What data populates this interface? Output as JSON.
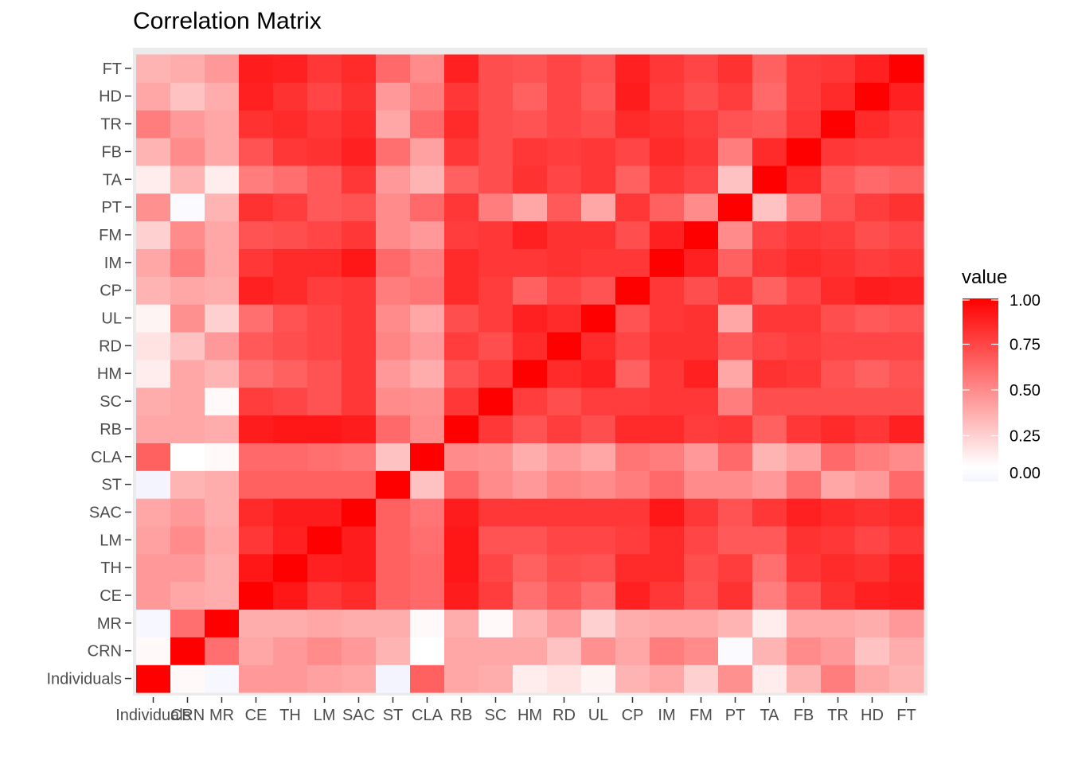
{
  "chart_data": {
    "type": "heatmap",
    "title": "Correlation Matrix",
    "xlabel": "",
    "ylabel": "",
    "variables": [
      "Individuals",
      "CRN",
      "MR",
      "CE",
      "TH",
      "LM",
      "SAC",
      "ST",
      "CLA",
      "RB",
      "SC",
      "HM",
      "RD",
      "UL",
      "CP",
      "IM",
      "FM",
      "PT",
      "TA",
      "FB",
      "TR",
      "HD",
      "FT"
    ],
    "legend": {
      "title": "value",
      "position": "right",
      "ticks": [
        "0.00",
        "0.25",
        "0.50",
        "0.75",
        "1.00"
      ],
      "low_color": "#f4f4ff",
      "mid_color": "#ffffff",
      "high_color": "#ff0000",
      "range": [
        0,
        1
      ]
    },
    "grid": true,
    "matrix": [
      [
        1.0,
        0.1,
        0.02,
        0.45,
        0.45,
        0.42,
        0.4,
        0.0,
        0.65,
        0.4,
        0.38,
        0.15,
        0.18,
        0.12,
        0.35,
        0.4,
        0.25,
        0.48,
        0.15,
        0.35,
        0.55,
        0.4,
        0.35
      ],
      [
        0.1,
        1.0,
        0.6,
        0.4,
        0.45,
        0.5,
        0.45,
        0.35,
        0.08,
        0.4,
        0.4,
        0.4,
        0.3,
        0.48,
        0.4,
        0.55,
        0.5,
        0.05,
        0.35,
        0.5,
        0.45,
        0.3,
        0.38
      ],
      [
        0.02,
        0.6,
        1.0,
        0.38,
        0.38,
        0.4,
        0.38,
        0.38,
        0.1,
        0.38,
        0.1,
        0.35,
        0.45,
        0.25,
        0.38,
        0.4,
        0.4,
        0.35,
        0.15,
        0.4,
        0.4,
        0.38,
        0.45
      ],
      [
        0.45,
        0.4,
        0.38,
        1.0,
        0.92,
        0.8,
        0.85,
        0.65,
        0.62,
        0.9,
        0.78,
        0.6,
        0.68,
        0.6,
        0.88,
        0.8,
        0.7,
        0.82,
        0.55,
        0.7,
        0.82,
        0.88,
        0.9
      ],
      [
        0.45,
        0.45,
        0.38,
        0.92,
        1.0,
        0.88,
        0.9,
        0.65,
        0.62,
        0.92,
        0.75,
        0.65,
        0.72,
        0.7,
        0.85,
        0.85,
        0.72,
        0.78,
        0.6,
        0.8,
        0.85,
        0.82,
        0.88
      ],
      [
        0.42,
        0.5,
        0.4,
        0.8,
        0.88,
        1.0,
        0.9,
        0.65,
        0.6,
        0.92,
        0.7,
        0.7,
        0.75,
        0.75,
        0.78,
        0.85,
        0.75,
        0.68,
        0.68,
        0.82,
        0.8,
        0.75,
        0.8
      ],
      [
        0.4,
        0.45,
        0.38,
        0.85,
        0.9,
        0.9,
        1.0,
        0.65,
        0.58,
        0.9,
        0.8,
        0.8,
        0.8,
        0.8,
        0.8,
        0.92,
        0.8,
        0.7,
        0.8,
        0.88,
        0.85,
        0.82,
        0.85
      ],
      [
        0.0,
        0.35,
        0.38,
        0.65,
        0.65,
        0.65,
        0.65,
        1.0,
        0.3,
        0.62,
        0.5,
        0.45,
        0.52,
        0.5,
        0.55,
        0.62,
        0.5,
        0.5,
        0.45,
        0.6,
        0.4,
        0.45,
        0.62
      ],
      [
        0.65,
        0.08,
        0.1,
        0.62,
        0.62,
        0.6,
        0.58,
        0.3,
        1.0,
        0.5,
        0.48,
        0.38,
        0.45,
        0.4,
        0.58,
        0.55,
        0.45,
        0.62,
        0.35,
        0.42,
        0.62,
        0.55,
        0.5
      ],
      [
        0.4,
        0.4,
        0.38,
        0.9,
        0.92,
        0.92,
        0.9,
        0.62,
        0.5,
        1.0,
        0.8,
        0.7,
        0.78,
        0.72,
        0.85,
        0.85,
        0.78,
        0.8,
        0.65,
        0.8,
        0.85,
        0.8,
        0.88
      ],
      [
        0.38,
        0.4,
        0.1,
        0.78,
        0.75,
        0.7,
        0.8,
        0.5,
        0.48,
        0.8,
        1.0,
        0.78,
        0.72,
        0.78,
        0.78,
        0.8,
        0.8,
        0.55,
        0.72,
        0.72,
        0.72,
        0.72,
        0.72
      ],
      [
        0.15,
        0.4,
        0.35,
        0.6,
        0.65,
        0.7,
        0.8,
        0.45,
        0.38,
        0.7,
        0.78,
        1.0,
        0.85,
        0.88,
        0.65,
        0.8,
        0.88,
        0.4,
        0.82,
        0.8,
        0.7,
        0.65,
        0.7
      ],
      [
        0.18,
        0.3,
        0.45,
        0.68,
        0.72,
        0.75,
        0.8,
        0.52,
        0.45,
        0.78,
        0.72,
        0.85,
        1.0,
        0.85,
        0.75,
        0.82,
        0.82,
        0.68,
        0.75,
        0.78,
        0.75,
        0.75,
        0.75
      ],
      [
        0.12,
        0.48,
        0.25,
        0.6,
        0.7,
        0.75,
        0.8,
        0.5,
        0.4,
        0.72,
        0.78,
        0.88,
        0.85,
        1.0,
        0.7,
        0.8,
        0.82,
        0.4,
        0.8,
        0.8,
        0.72,
        0.68,
        0.7
      ],
      [
        0.35,
        0.4,
        0.38,
        0.88,
        0.85,
        0.78,
        0.8,
        0.55,
        0.58,
        0.85,
        0.78,
        0.65,
        0.75,
        0.7,
        1.0,
        0.8,
        0.72,
        0.8,
        0.65,
        0.75,
        0.85,
        0.9,
        0.88
      ],
      [
        0.4,
        0.55,
        0.4,
        0.8,
        0.85,
        0.85,
        0.92,
        0.62,
        0.55,
        0.85,
        0.8,
        0.8,
        0.82,
        0.8,
        0.8,
        1.0,
        0.88,
        0.65,
        0.8,
        0.85,
        0.82,
        0.78,
        0.8
      ],
      [
        0.25,
        0.5,
        0.4,
        0.7,
        0.72,
        0.75,
        0.8,
        0.5,
        0.45,
        0.78,
        0.8,
        0.88,
        0.82,
        0.82,
        0.72,
        0.88,
        1.0,
        0.5,
        0.75,
        0.8,
        0.78,
        0.72,
        0.75
      ],
      [
        0.48,
        0.05,
        0.35,
        0.82,
        0.78,
        0.68,
        0.7,
        0.5,
        0.62,
        0.8,
        0.55,
        0.4,
        0.68,
        0.4,
        0.8,
        0.65,
        0.5,
        1.0,
        0.3,
        0.55,
        0.7,
        0.78,
        0.82
      ],
      [
        0.15,
        0.35,
        0.15,
        0.55,
        0.6,
        0.68,
        0.8,
        0.45,
        0.35,
        0.65,
        0.72,
        0.82,
        0.75,
        0.8,
        0.65,
        0.8,
        0.75,
        0.3,
        1.0,
        0.85,
        0.68,
        0.62,
        0.65
      ],
      [
        0.35,
        0.5,
        0.4,
        0.7,
        0.8,
        0.82,
        0.88,
        0.6,
        0.42,
        0.8,
        0.72,
        0.8,
        0.78,
        0.8,
        0.75,
        0.85,
        0.8,
        0.55,
        0.85,
        1.0,
        0.8,
        0.78,
        0.78
      ],
      [
        0.55,
        0.45,
        0.4,
        0.82,
        0.85,
        0.8,
        0.85,
        0.4,
        0.62,
        0.85,
        0.72,
        0.7,
        0.75,
        0.72,
        0.85,
        0.82,
        0.78,
        0.7,
        0.68,
        0.8,
        1.0,
        0.85,
        0.8
      ],
      [
        0.4,
        0.3,
        0.38,
        0.88,
        0.82,
        0.75,
        0.82,
        0.45,
        0.55,
        0.8,
        0.72,
        0.65,
        0.75,
        0.68,
        0.9,
        0.78,
        0.72,
        0.78,
        0.62,
        0.78,
        0.85,
        1.0,
        0.88
      ],
      [
        0.35,
        0.38,
        0.45,
        0.9,
        0.88,
        0.8,
        0.85,
        0.62,
        0.5,
        0.88,
        0.72,
        0.7,
        0.75,
        0.7,
        0.88,
        0.8,
        0.75,
        0.82,
        0.65,
        0.78,
        0.8,
        0.88,
        1.0
      ]
    ]
  }
}
